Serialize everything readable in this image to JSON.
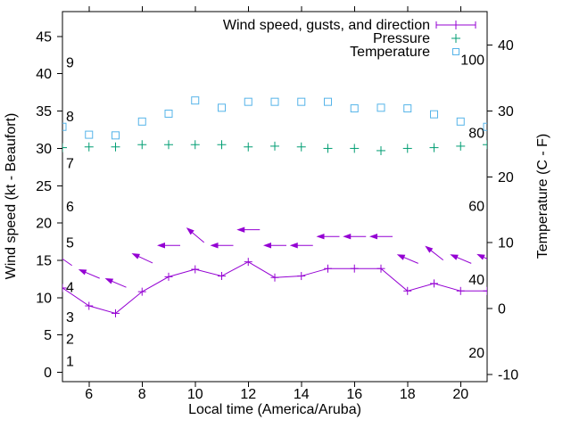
{
  "figure": {
    "xlabel": "Local time (America/Aruba)",
    "ylabel_left": "Wind speed (kt - Beaufort)",
    "ylabel_right": "Temperature (C - F)",
    "background": "#ffffff",
    "legend": {
      "position": "top-right-inside",
      "items": [
        {
          "label": "Wind speed, gusts, and direction",
          "marker": "errorbar-line-with-plus",
          "color": "#9400d3"
        },
        {
          "label": "Pressure",
          "marker": "plus",
          "color": "#009e73"
        },
        {
          "label": "Temperature",
          "marker": "open-square",
          "color": "#56b4e9"
        }
      ]
    }
  },
  "chart_data": {
    "type": "line",
    "title": "",
    "xlabel": "Local time (America/Aruba)",
    "ylabel_left": "Wind speed (kt - Beaufort)",
    "ylabel_right": "Temperature (C - F)",
    "grid": false,
    "legend_position": "top-right-inside",
    "x_hours": [
      5,
      6,
      7,
      8,
      9,
      10,
      11,
      12,
      13,
      14,
      15,
      16,
      17,
      18,
      19,
      20,
      21
    ],
    "x_tick_labels": [
      "6",
      "8",
      "10",
      "12",
      "14",
      "16",
      "18",
      "20"
    ],
    "x_tick_values": [
      6,
      8,
      10,
      12,
      14,
      16,
      18,
      20
    ],
    "y_left_tick_values": [
      0,
      5,
      10,
      15,
      20,
      25,
      30,
      35,
      40,
      45
    ],
    "y_right_tick_values": [
      -10,
      0,
      10,
      20,
      30,
      40
    ],
    "beaufort_scale_labels": [
      {
        "label": "1",
        "kt": 1.5
      },
      {
        "label": "2",
        "kt": 4.5
      },
      {
        "label": "3",
        "kt": 7.4
      },
      {
        "label": "4",
        "kt": 11.4
      },
      {
        "label": "5",
        "kt": 17.4
      },
      {
        "label": "6",
        "kt": 22.2
      },
      {
        "label": "7",
        "kt": 28.0
      },
      {
        "label": "8",
        "kt": 34.3
      },
      {
        "label": "9",
        "kt": 41.5
      }
    ],
    "fahrenheit_scale_labels": [
      {
        "label": "20",
        "c": -6.7
      },
      {
        "label": "40",
        "c": 4.4
      },
      {
        "label": "60",
        "c": 15.6
      },
      {
        "label": "80",
        "c": 26.7
      },
      {
        "label": "100",
        "c": 37.8
      }
    ],
    "xlim": [
      5,
      21
    ],
    "ylim_left": [
      -1.25,
      48.33
    ],
    "ylim_right": [
      -11.1,
      45.1
    ],
    "series": [
      {
        "name": "Wind speed (kt)",
        "axis": "left",
        "color": "#9400d3",
        "style": "line-with-plus-markers",
        "values": [
          11.3,
          8.9,
          7.9,
          10.8,
          12.8,
          13.8,
          12.9,
          14.8,
          12.7,
          12.9,
          13.9,
          13.9,
          13.9,
          10.9,
          11.9,
          10.9,
          10.9
        ]
      },
      {
        "name": "Wind gusts and direction (kt)",
        "axis": "left",
        "color": "#9400d3",
        "style": "direction-arrows",
        "values": [
          15.2,
          13.2,
          12.0,
          15.3,
          17.0,
          18.4,
          17.0,
          19.1,
          17.0,
          17.0,
          18.2,
          18.2,
          18.2,
          15.2,
          16.0,
          15.2,
          15.2
        ],
        "arrow_angles_deg": [
          145,
          157,
          157,
          155,
          180,
          140,
          180,
          180,
          180,
          180,
          180,
          180,
          180,
          157,
          142,
          157,
          155
        ]
      },
      {
        "name": "Pressure",
        "axis": "left",
        "color": "#009e73",
        "style": "plus-markers",
        "values": [
          30.1,
          30.2,
          30.2,
          30.5,
          30.5,
          30.5,
          30.5,
          30.2,
          30.3,
          30.2,
          30.0,
          30.0,
          29.7,
          30.0,
          30.1,
          30.3,
          30.5
        ]
      },
      {
        "name": "Temperature (C)",
        "axis": "right",
        "color": "#56b4e9",
        "style": "open-square-markers",
        "values": [
          27.6,
          26.4,
          26.3,
          28.4,
          29.6,
          31.6,
          30.5,
          31.4,
          31.4,
          31.4,
          31.4,
          30.4,
          30.5,
          30.4,
          29.5,
          28.4,
          27.6
        ]
      }
    ]
  }
}
